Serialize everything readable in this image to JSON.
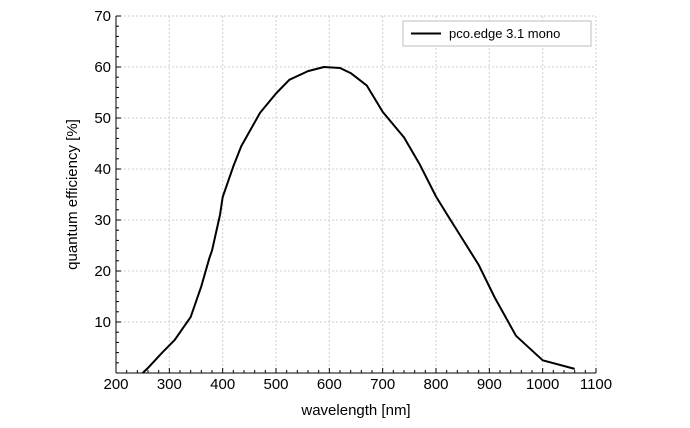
{
  "chart_data": {
    "type": "line",
    "title": "",
    "xlabel": "wavelength [nm]",
    "ylabel": "quantum efficiency [%]",
    "xlim": [
      200,
      1100
    ],
    "ylim": [
      0,
      70
    ],
    "x_ticks": [
      200,
      300,
      400,
      500,
      600,
      700,
      800,
      900,
      1000,
      1100
    ],
    "y_ticks": [
      10,
      20,
      30,
      40,
      50,
      60,
      70
    ],
    "grid": true,
    "legend_position": "top-right",
    "line_color": "#000000",
    "grid_color": "#cfcfcf",
    "series": [
      {
        "name": "pco.edge 3.1 mono",
        "x": [
          250,
          260,
          285,
          310,
          340,
          360,
          375,
          380,
          395,
          400,
          420,
          435,
          470,
          500,
          525,
          560,
          590,
          620,
          640,
          670,
          700,
          740,
          770,
          800,
          820,
          850,
          880,
          910,
          950,
          1000,
          1060
        ],
        "y": [
          0,
          1,
          3.8,
          6.5,
          11,
          17,
          22.5,
          24,
          31,
          34.5,
          40.5,
          44.5,
          51,
          54.8,
          57.5,
          59.2,
          60,
          59.8,
          58.8,
          56.4,
          51.2,
          46.2,
          40.8,
          34.6,
          31.2,
          26.2,
          21.2,
          14.8,
          7.3,
          2.5,
          0.8
        ]
      }
    ]
  }
}
